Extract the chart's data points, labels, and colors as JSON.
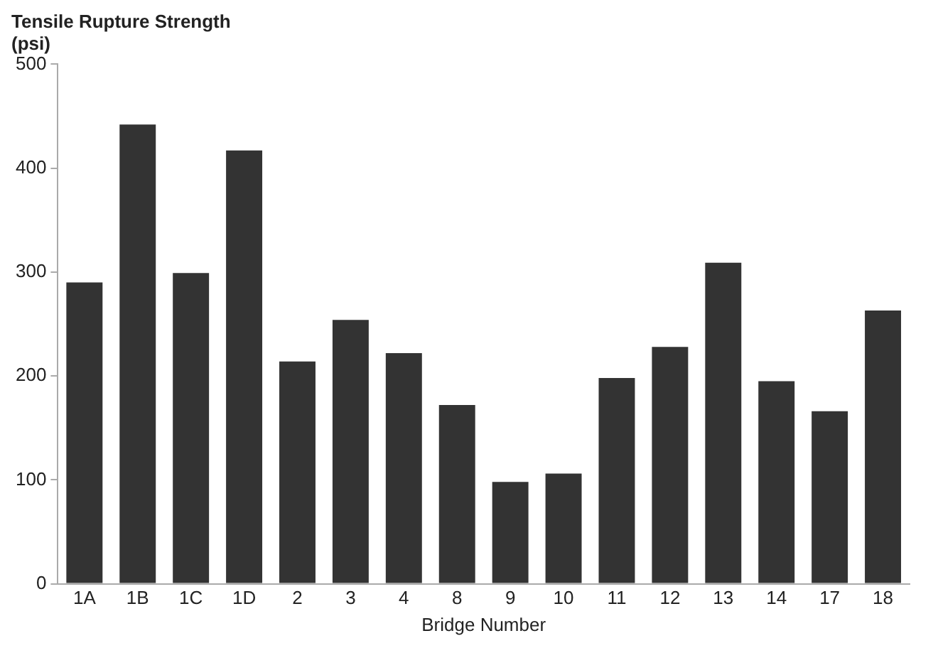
{
  "chart_data": {
    "type": "bar",
    "ylabel": "Tensile Rupture Strength\n(psi)",
    "xlabel": "Bridge Number",
    "categories": [
      "1A",
      "1B",
      "1C",
      "1D",
      "2",
      "3",
      "4",
      "8",
      "9",
      "10",
      "11",
      "12",
      "13",
      "14",
      "17",
      "18"
    ],
    "values": [
      290,
      442,
      299,
      417,
      214,
      254,
      222,
      172,
      98,
      106,
      198,
      228,
      309,
      195,
      166,
      263
    ],
    "color": "#333333",
    "ylim": [
      0,
      500
    ],
    "yticks": [
      0,
      100,
      200,
      300,
      400,
      500
    ],
    "grid": false,
    "legend": false
  }
}
